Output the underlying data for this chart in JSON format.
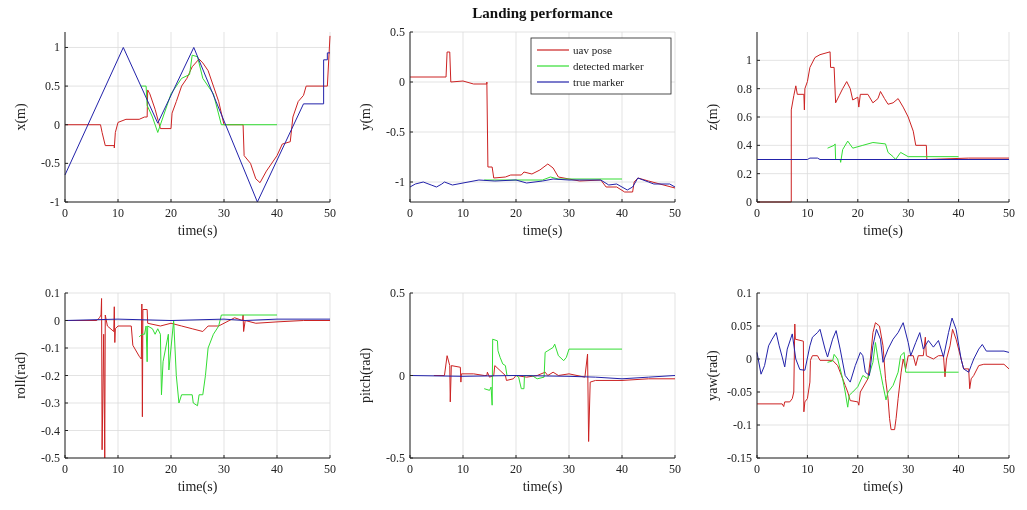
{
  "chart_data": [
    {
      "type": "line",
      "xlabel": "time(s)",
      "ylabel": "x(m)",
      "xlim": [
        0,
        50
      ],
      "xticks": [
        0,
        10,
        20,
        30,
        40,
        50
      ],
      "ylim": [
        -1,
        1.2
      ],
      "yticks": [
        -1,
        -0.5,
        0,
        0.5,
        1
      ],
      "grid": true,
      "series": [
        {
          "color": "#cc2222",
          "x": [
            0,
            6.7,
            7,
            7.6,
            9.3,
            9.3,
            9.5,
            10,
            11.5,
            14,
            15,
            15.5,
            15.6,
            16,
            17,
            17.6,
            18,
            20,
            20.2,
            21,
            22,
            23,
            24,
            25.3,
            26,
            27,
            28,
            29,
            30,
            33.6,
            33.8,
            35,
            36,
            36.8,
            38,
            40,
            41,
            42.5,
            43,
            44,
            45,
            45.5,
            49.5,
            50
          ],
          "values": [
            0,
            0,
            -0.1,
            -0.27,
            -0.27,
            -0.3,
            -0.1,
            0.03,
            0.07,
            0.07,
            0.1,
            0.1,
            0.45,
            0.4,
            0.2,
            0.05,
            -0.05,
            -0.05,
            0.15,
            0.3,
            0.5,
            0.6,
            0.75,
            0.85,
            0.8,
            0.7,
            0.5,
            0.3,
            0,
            0,
            -0.4,
            -0.5,
            -0.7,
            -0.75,
            -0.6,
            -0.4,
            -0.25,
            -0.22,
            0.1,
            0.3,
            0.38,
            0.5,
            0.5,
            1.15
          ]
        },
        {
          "color": "#33dd33",
          "x": [
            14.3,
            15.3,
            15.5,
            16.5,
            17.5,
            18.5,
            20,
            22,
            23.5,
            24,
            25,
            26,
            28,
            29.5,
            40
          ],
          "values": [
            0.5,
            0.5,
            0.25,
            0.1,
            -0.1,
            0.1,
            0.4,
            0.6,
            0.65,
            0.9,
            0.88,
            0.6,
            0.4,
            0,
            0
          ]
        },
        {
          "color": "#2222aa",
          "x": [
            0,
            11,
            17.5,
            24.3,
            36.3,
            45,
            48.8,
            48.8,
            49.5,
            49.5,
            50
          ],
          "values": [
            -0.65,
            1,
            0.02,
            1,
            -1,
            0.27,
            0.27,
            0.84,
            0.84,
            0.93,
            0.93
          ]
        }
      ]
    },
    {
      "type": "line",
      "title": "Landing performance",
      "xlabel": "time(s)",
      "ylabel": "y(m)",
      "xlim": [
        0,
        50
      ],
      "xticks": [
        0,
        10,
        20,
        30,
        40,
        50
      ],
      "ylim": [
        -1.2,
        0.5
      ],
      "yticks": [
        -1,
        -0.5,
        0,
        0.5
      ],
      "grid": true,
      "legend": "top right",
      "series": [
        {
          "name": "uav pose",
          "color": "#cc2222",
          "x": [
            0,
            6.8,
            7,
            7.5,
            7.7,
            10,
            12,
            14.5,
            14.5,
            14.7,
            15.5,
            15.8,
            18,
            19,
            21,
            21.5,
            23,
            24.5,
            26,
            27,
            28,
            30,
            32,
            36,
            37,
            39,
            40.5,
            42,
            42.3,
            43,
            45,
            50
          ],
          "values": [
            0.05,
            0.05,
            0.3,
            0.3,
            0,
            0.01,
            -0.02,
            -0.02,
            0,
            -0.85,
            -0.85,
            -0.96,
            -0.95,
            -0.93,
            -0.93,
            -0.9,
            -0.92,
            -0.88,
            -0.82,
            -0.86,
            -0.95,
            -0.97,
            -0.99,
            -0.98,
            -1.05,
            -1.05,
            -1.1,
            -1.1,
            -1,
            -0.96,
            -0.99,
            -1.06
          ]
        },
        {
          "name": "detected marker",
          "color": "#33dd33",
          "x": [
            14,
            25,
            26.5,
            28,
            40
          ],
          "values": [
            -0.98,
            -0.98,
            -0.95,
            -0.97,
            -0.97
          ]
        },
        {
          "name": "true marker",
          "color": "#2222aa",
          "x": [
            0,
            1,
            2.5,
            4,
            5,
            6,
            6.5,
            8,
            10,
            13,
            16,
            20,
            22,
            25,
            27,
            30,
            36,
            37.5,
            39,
            41,
            42,
            43,
            45,
            46,
            49,
            50
          ],
          "values": [
            -1.05,
            -1.02,
            -1,
            -1.03,
            -1.05,
            -1.02,
            -1,
            -1.03,
            -1.01,
            -0.98,
            -0.99,
            -0.98,
            -1.01,
            -0.99,
            -0.97,
            -0.98,
            -0.98,
            -1.03,
            -1.02,
            -1.08,
            -1.05,
            -0.96,
            -1,
            -1.02,
            -1.02,
            -1.05
          ]
        }
      ]
    },
    {
      "type": "line",
      "xlabel": "time(s)",
      "ylabel": "z(m)",
      "xlim": [
        0,
        50
      ],
      "xticks": [
        0,
        10,
        20,
        30,
        40,
        50
      ],
      "ylim": [
        0,
        1.2
      ],
      "yticks": [
        0,
        0.2,
        0.4,
        0.6,
        0.8,
        1
      ],
      "grid": true,
      "series": [
        {
          "color": "#cc2222",
          "x": [
            0,
            6.8,
            6.8,
            7.3,
            7.7,
            8,
            9.3,
            9.4,
            9.5,
            10,
            10.5,
            11.5,
            12.5,
            14.5,
            14.6,
            15.3,
            15.6,
            16.3,
            17,
            17.8,
            18.5,
            19,
            20,
            20.2,
            20.5,
            22,
            23,
            24,
            24.5,
            25.3,
            26,
            27,
            28,
            29,
            30,
            31,
            31.5,
            33.6,
            33.7,
            42,
            50
          ],
          "values": [
            0,
            0,
            0.65,
            0.75,
            0.82,
            0.76,
            0.76,
            0.65,
            0.8,
            0.85,
            0.95,
            1.02,
            1.04,
            1.06,
            0.95,
            0.95,
            0.7,
            0.75,
            0.8,
            0.85,
            0.8,
            0.72,
            0.74,
            0.67,
            0.76,
            0.76,
            0.7,
            0.73,
            0.78,
            0.73,
            0.69,
            0.7,
            0.73,
            0.67,
            0.6,
            0.5,
            0.4,
            0.4,
            0.3,
            0.31,
            0.31
          ]
        },
        {
          "color": "#33dd33",
          "x": [
            14,
            15.3,
            15.5,
            15.6,
            16.5,
            16.6,
            17,
            18,
            19,
            21,
            23,
            25.5,
            26,
            27,
            27.5,
            28.5,
            30,
            40
          ],
          "values": [
            0.38,
            0.4,
            0.41,
            0.3,
            0.3,
            0.28,
            0.37,
            0.43,
            0.38,
            0.4,
            0.42,
            0.41,
            0.35,
            0.32,
            0.3,
            0.35,
            0.32,
            0.32
          ]
        },
        {
          "color": "#2222aa",
          "x": [
            0,
            10,
            10.5,
            12,
            12.5,
            50
          ],
          "values": [
            0.3,
            0.3,
            0.31,
            0.31,
            0.3,
            0.3
          ]
        }
      ]
    },
    {
      "type": "line",
      "xlabel": "time(s)",
      "ylabel": "roll(rad)",
      "xlim": [
        0,
        50
      ],
      "xticks": [
        0,
        10,
        20,
        30,
        40,
        50
      ],
      "ylim": [
        -0.5,
        0.1
      ],
      "yticks": [
        -0.5,
        -0.4,
        -0.3,
        -0.2,
        -0.1,
        0,
        0.1
      ],
      "grid": true,
      "series": [
        {
          "color": "#cc2222",
          "x": [
            0,
            6,
            6.5,
            6.8,
            6.9,
            7,
            7.3,
            7.5,
            7.6,
            8,
            9.2,
            9.3,
            9.4,
            9.5,
            10,
            12.5,
            12.8,
            14,
            14.4,
            14.5,
            14.6,
            14.7,
            15.5,
            15.6,
            18,
            20,
            22,
            24,
            26,
            27,
            29,
            30,
            32,
            33.5,
            33.6,
            33.7,
            34,
            36,
            40,
            45,
            50
          ],
          "values": [
            0,
            0,
            0.01,
            0.02,
            0.08,
            -0.47,
            -0.05,
            -0.5,
            0.02,
            -0.02,
            -0.04,
            0.05,
            -0.08,
            -0.03,
            -0.02,
            -0.02,
            -0.09,
            -0.13,
            -0.14,
            0.06,
            -0.35,
            0.04,
            0.04,
            -0.01,
            -0.02,
            -0.01,
            -0.02,
            -0.03,
            -0.04,
            -0.02,
            -0.02,
            -0.01,
            0.01,
            0,
            0.02,
            -0.04,
            0,
            -0.01,
            -0.005,
            0,
            0
          ]
        },
        {
          "color": "#33dd33",
          "x": [
            14,
            14.5,
            15,
            15.3,
            15.5,
            15.6,
            16.5,
            17,
            17.5,
            18,
            18.2,
            18.5,
            19,
            19.5,
            19.6,
            20,
            20.5,
            21,
            21.5,
            22,
            24,
            24.2,
            25,
            25.3,
            26,
            26.5,
            27,
            28,
            29,
            29.5,
            40
          ],
          "values": [
            -0.06,
            -0.05,
            -0.05,
            -0.02,
            -0.15,
            -0.02,
            -0.03,
            -0.05,
            -0.03,
            -0.05,
            -0.27,
            -0.15,
            -0.1,
            -0.05,
            -0.18,
            -0.1,
            0,
            -0.2,
            -0.3,
            -0.27,
            -0.27,
            -0.3,
            -0.31,
            -0.27,
            -0.27,
            -0.2,
            -0.1,
            -0.05,
            -0.02,
            0.02,
            0.02
          ]
        },
        {
          "color": "#2222aa",
          "x": [
            0,
            10,
            20,
            30,
            34,
            40,
            50
          ],
          "values": [
            0,
            0.005,
            0,
            0.005,
            0,
            0.005,
            0.005
          ]
        }
      ]
    },
    {
      "type": "line",
      "xlabel": "time(s)",
      "ylabel": "pitch(rad)",
      "xlim": [
        0,
        50
      ],
      "xticks": [
        0,
        10,
        20,
        30,
        40,
        50
      ],
      "ylim": [
        -0.5,
        0.5
      ],
      "yticks": [
        -0.5,
        0,
        0.5
      ],
      "grid": true,
      "series": [
        {
          "color": "#cc2222",
          "x": [
            4.5,
            6.5,
            7,
            7.5,
            7.6,
            7.8,
            9.5,
            9.6,
            9.7,
            12,
            14,
            14.5,
            14.6,
            15,
            15.8,
            16,
            17,
            18,
            18.2,
            19.5,
            20,
            22,
            24,
            25.5,
            26,
            27,
            28,
            30,
            33,
            33.5,
            33.7,
            34,
            35,
            40,
            45,
            50
          ],
          "values": [
            0,
            0,
            0.12,
            0.06,
            -0.16,
            0.06,
            0.05,
            -0.04,
            0.01,
            0.01,
            0,
            0,
            0.02,
            -0.01,
            0,
            0.06,
            0.03,
            0,
            -0.03,
            -0.02,
            0,
            -0.01,
            0,
            0.02,
            0,
            0.02,
            0,
            0.01,
            -0.01,
            0.13,
            -0.4,
            -0.04,
            -0.03,
            -0.03,
            -0.02,
            -0.02
          ]
        },
        {
          "color": "#33dd33",
          "x": [
            14,
            15,
            15.3,
            15.5,
            15.6,
            16.5,
            16.6,
            17,
            17.5,
            18,
            18.3,
            20,
            20.5,
            21,
            21.5,
            21.6,
            23,
            24,
            25.3,
            25.5,
            26,
            27,
            27.3,
            28,
            29,
            29.5,
            30,
            40
          ],
          "values": [
            -0.08,
            -0.09,
            -0.07,
            -0.18,
            0.22,
            0.21,
            0.15,
            0.11,
            0.07,
            0.06,
            0,
            0,
            -0.01,
            -0.08,
            -0.08,
            0,
            0,
            -0.02,
            -0.01,
            0.14,
            0.15,
            0.17,
            0.19,
            0.12,
            0.09,
            0.11,
            0.16,
            0.16
          ]
        },
        {
          "color": "#2222aa",
          "x": [
            0,
            10,
            20,
            30,
            35,
            40,
            45,
            50
          ],
          "values": [
            0,
            -0.005,
            0,
            -0.005,
            -0.01,
            -0.02,
            -0.01,
            0
          ]
        }
      ]
    },
    {
      "type": "line",
      "xlabel": "time(s)",
      "ylabel": "yaw(rad)",
      "xlim": [
        0,
        50
      ],
      "xticks": [
        0,
        10,
        20,
        30,
        40,
        50
      ],
      "ylim": [
        -0.15,
        0.1
      ],
      "yticks": [
        -0.15,
        -0.1,
        -0.05,
        0,
        0.05,
        0.1
      ],
      "grid": true,
      "series": [
        {
          "color": "#cc2222",
          "x": [
            0,
            5,
            5.3,
            5.5,
            6.5,
            7,
            7.3,
            7.5,
            7.6,
            9.2,
            9.3,
            9.5,
            10,
            10.5,
            10.6,
            11,
            12,
            12.5,
            15,
            16,
            16.5,
            17.5,
            18,
            18.5,
            20,
            20.2,
            20.5,
            22,
            22.5,
            23,
            23.5,
            24.3,
            25,
            25.5,
            26,
            26.3,
            26.6,
            27.3,
            27.6,
            28,
            28.6,
            29,
            29.5,
            30,
            31,
            31.5,
            32,
            33,
            33.4,
            33.6,
            35,
            36,
            37,
            37.3,
            37.6,
            38.3,
            38.8,
            39.5,
            40.5,
            41,
            42,
            42.2,
            42.5,
            43,
            44,
            45,
            49,
            50
          ],
          "values": [
            -0.068,
            -0.068,
            -0.072,
            -0.065,
            -0.065,
            -0.06,
            -0.05,
            0.053,
            0.03,
            0.027,
            -0.08,
            -0.065,
            -0.06,
            -0.035,
            -0.002,
            0.005,
            0.005,
            -0.002,
            -0.002,
            -0.01,
            -0.02,
            -0.04,
            -0.05,
            -0.063,
            -0.065,
            -0.07,
            -0.05,
            -0.03,
            0,
            0.04,
            0.055,
            0.05,
            0.02,
            -0.03,
            -0.06,
            -0.09,
            -0.107,
            -0.107,
            -0.09,
            -0.06,
            -0.02,
            0,
            -0.015,
            0.005,
            0.005,
            -0.01,
            0.005,
            0.005,
            0.033,
            0.005,
            0,
            0.005,
            0.005,
            -0.027,
            0,
            0.02,
            0.045,
            0.03,
            0,
            -0.015,
            -0.015,
            -0.045,
            -0.03,
            -0.025,
            -0.01,
            -0.008,
            -0.008,
            -0.015
          ]
        },
        {
          "color": "#33dd33",
          "x": [
            14,
            15,
            15.3,
            16,
            17,
            17.5,
            18,
            18.3,
            19,
            20,
            21,
            22,
            23,
            23.5,
            24,
            24.5,
            25,
            25.6,
            26,
            27,
            28,
            28.5,
            29.2,
            29.5,
            40
          ],
          "values": [
            -0.005,
            -0.003,
            0.007,
            0,
            -0.03,
            -0.05,
            -0.073,
            -0.055,
            -0.05,
            -0.042,
            -0.025,
            -0.03,
            -0.005,
            0.025,
            0,
            -0.02,
            -0.04,
            -0.062,
            -0.05,
            -0.04,
            -0.02,
            0.005,
            0.01,
            -0.02,
            -0.02
          ]
        },
        {
          "color": "#2222aa",
          "x": [
            0,
            0.8,
            1.5,
            2.3,
            3,
            3.8,
            4.4,
            5,
            5.5,
            6,
            7,
            7.7,
            8.5,
            9.5,
            10.5,
            11,
            12,
            12.5,
            13.5,
            14,
            15,
            15.7,
            16.5,
            17.5,
            18.5,
            19.5,
            20.5,
            21,
            21.5,
            22.3,
            23,
            23.7,
            24.5,
            25,
            26,
            27,
            28,
            29,
            30,
            30.5,
            31.5,
            32.3,
            33,
            34,
            35,
            36,
            37,
            38,
            38.7,
            39.5,
            40.5,
            41,
            42,
            42.5,
            43,
            44,
            44.7,
            45.5,
            49,
            50
          ],
          "values": [
            0.01,
            -0.023,
            -0.01,
            0.02,
            0.03,
            0.04,
            0.02,
            0.003,
            -0.012,
            0.015,
            0.038,
            0,
            -0.016,
            -0.017,
            0.02,
            0.033,
            0.04,
            0.045,
            0.015,
            0.003,
            0.03,
            0.043,
            0.015,
            -0.025,
            -0.035,
            -0.01,
            0.01,
            0.005,
            -0.02,
            -0.025,
            0.02,
            0.045,
            0.03,
            -0.005,
            0.015,
            0.03,
            0.04,
            0.055,
            0.025,
            0.005,
            0.025,
            0.04,
            0.015,
            0.028,
            0.018,
            0.028,
            0.003,
            0.04,
            0.062,
            0.045,
            0,
            -0.015,
            -0.02,
            -0.01,
            0,
            0.015,
            0.022,
            0.012,
            0.012,
            0.01
          ]
        }
      ]
    }
  ]
}
